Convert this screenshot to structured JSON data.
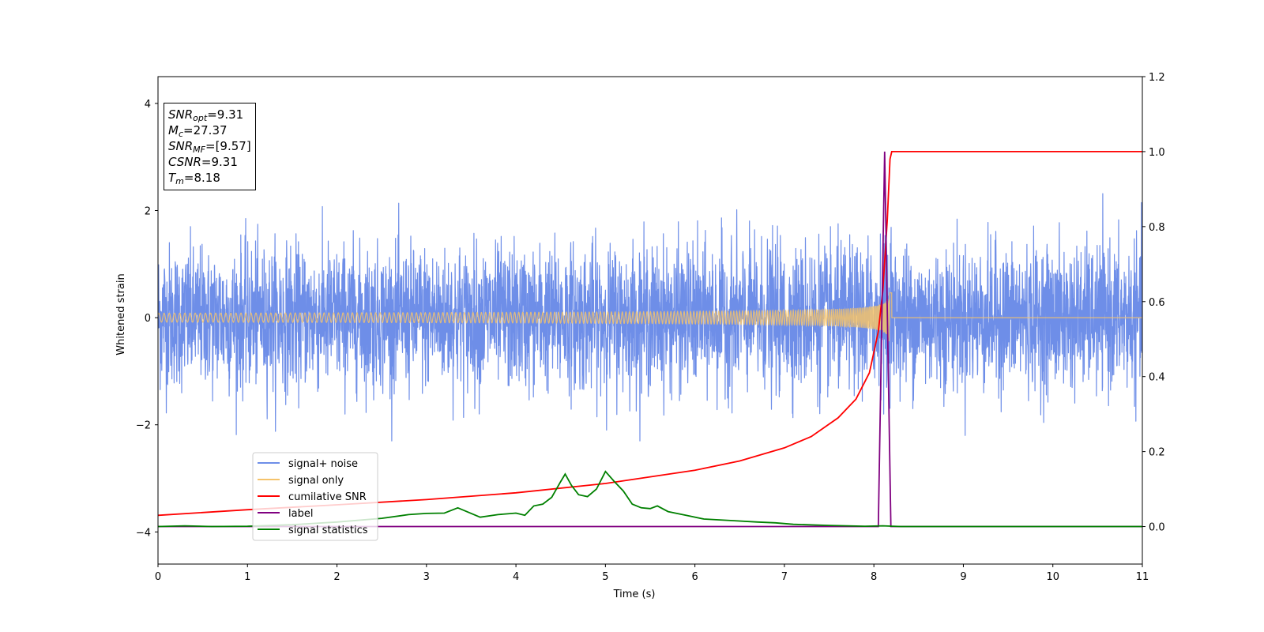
{
  "chart_data": {
    "type": "line",
    "xlabel": "Time (s)",
    "ylabel_left": "Whitened strain",
    "xlim": [
      0,
      11
    ],
    "ylim_left": [
      -4.6,
      4.5
    ],
    "ylim_right": [
      -0.1,
      1.2
    ],
    "x_ticks": [
      "0",
      "1",
      "2",
      "3",
      "4",
      "5",
      "6",
      "7",
      "8",
      "9",
      "10",
      "11"
    ],
    "y_left_ticks": [
      "4",
      "2",
      "0",
      "−2",
      "−4"
    ],
    "y_right_ticks": [
      "1.2",
      "1.0",
      "0.8",
      "0.6",
      "0.4",
      "0.2",
      "0.0"
    ],
    "legend_position": "lower-left",
    "annotations": {
      "snr_opt": {
        "sym": "SNR",
        "sub": "opt",
        "value": "=9.31"
      },
      "mc": {
        "sym": "M",
        "sub": "c",
        "value": "=27.37"
      },
      "snr_mf": {
        "sym": "SNR",
        "sub": "MF",
        "value": "=[9.57]"
      },
      "csnr": {
        "sym": "CSNR",
        "sub": "",
        "value": "=9.31"
      },
      "tm": {
        "sym": "T",
        "sub": "m",
        "value": "=8.18"
      }
    },
    "series": [
      {
        "name": "signal+ noise",
        "color": "#6e8ee8",
        "axis": "left",
        "description_values": {
          "amplitude_std": 0.65,
          "max": 2.4,
          "min": -2.25
        }
      },
      {
        "name": "signal only",
        "color": "#f5c36b",
        "axis": "left",
        "chirp": {
          "t_merge": 8.18,
          "peak_amplitude": 0.5
        }
      },
      {
        "name": "cumilative SNR",
        "color": "#ff0000",
        "axis": "right",
        "x": [
          0,
          1,
          2,
          3,
          4,
          5,
          6,
          6.5,
          7,
          7.3,
          7.6,
          7.8,
          7.95,
          8.05,
          8.1,
          8.15,
          8.18,
          8.2,
          11
        ],
        "values": [
          0.03,
          0.045,
          0.058,
          0.072,
          0.09,
          0.115,
          0.15,
          0.175,
          0.21,
          0.24,
          0.29,
          0.34,
          0.41,
          0.52,
          0.63,
          0.82,
          0.98,
          1.0,
          1.0
        ]
      },
      {
        "name": "label",
        "color": "#800080",
        "axis": "right",
        "x": [
          0,
          8.05,
          8.12,
          8.19,
          11
        ],
        "values": [
          0.0,
          0.0,
          1.0,
          0.0,
          0.0
        ]
      },
      {
        "name": "signal statistics",
        "color": "#008000",
        "axis": "right",
        "x": [
          0,
          0.3,
          0.6,
          1.0,
          1.5,
          2.0,
          2.5,
          2.8,
          3.0,
          3.2,
          3.35,
          3.45,
          3.6,
          3.8,
          4.0,
          4.1,
          4.2,
          4.3,
          4.4,
          4.5,
          4.55,
          4.62,
          4.7,
          4.8,
          4.9,
          5.0,
          5.1,
          5.2,
          5.3,
          5.4,
          5.5,
          5.58,
          5.7,
          5.9,
          6.1,
          6.4,
          6.7,
          6.9,
          7.1,
          7.5,
          7.9,
          8.1,
          8.3,
          11
        ],
        "values": [
          0.0,
          0.002,
          0.0,
          0.001,
          0.005,
          0.012,
          0.022,
          0.032,
          0.035,
          0.036,
          0.05,
          0.04,
          0.025,
          0.032,
          0.036,
          0.03,
          0.055,
          0.06,
          0.078,
          0.12,
          0.14,
          0.11,
          0.085,
          0.08,
          0.1,
          0.147,
          0.12,
          0.095,
          0.06,
          0.05,
          0.048,
          0.055,
          0.04,
          0.03,
          0.02,
          0.016,
          0.012,
          0.01,
          0.006,
          0.003,
          0.001,
          0.002,
          0.0,
          0.0
        ]
      }
    ]
  }
}
